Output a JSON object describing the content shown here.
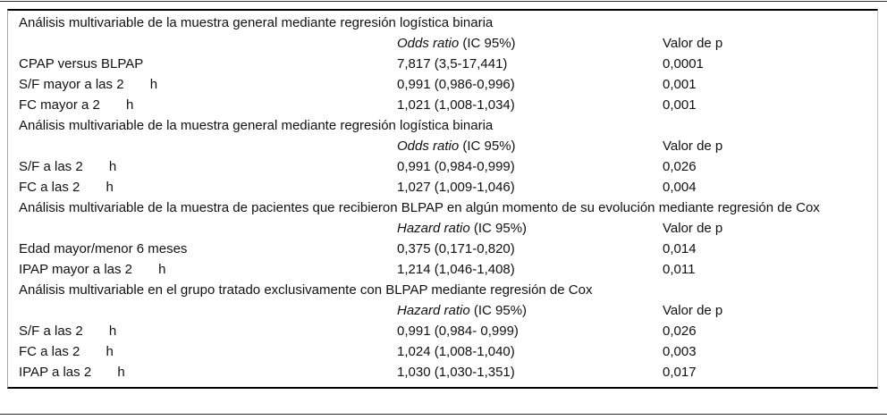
{
  "table": {
    "ci_suffix": " (IC 95%)",
    "p_header": "Valor de p",
    "text_color": "#111111",
    "rule_color": "#000000",
    "side_border_color": "#a6a6a6",
    "sections": [
      {
        "title": "Análisis multivariable de la muestra general mediante regresión logística binaria",
        "ratio_label": "Odds ratio",
        "rows": [
          {
            "label": "CPAP versus BLPAP",
            "value": "7,817 (3,5-17,441)",
            "p": "0,0001"
          },
          {
            "label": "S/F mayor a las 2       h",
            "value": "0,991 (0,986-0,996)",
            "p": "0,001"
          },
          {
            "label": "FC mayor a 2       h",
            "value": "1,021 (1,008-1,034)",
            "p": "0,001"
          }
        ]
      },
      {
        "title": "Análisis multivariable de la muestra general mediante regresión logística binaria",
        "ratio_label": "Odds ratio",
        "rows": [
          {
            "label": "S/F a las 2       h",
            "value": "0,991 (0,984-0,999)",
            "p": "0,026"
          },
          {
            "label": "FC a las 2       h",
            "value": "1,027 (1,009-1,046)",
            "p": "0,004"
          }
        ]
      },
      {
        "title": "Análisis multivariable de la muestra de pacientes que recibieron BLPAP en algún momento de su evolución mediante regresión de Cox",
        "ratio_label": "Hazard ratio",
        "rows": [
          {
            "label": "Edad mayor/menor 6 meses",
            "value": "0,375 (0,171-0,820)",
            "p": "0,014"
          },
          {
            "label": "IPAP mayor a las 2       h",
            "value": "1,214 (1,046-1,408)",
            "p": "0,011"
          }
        ]
      },
      {
        "title": "Análisis multivariable en el grupo tratado exclusivamente con BLPAP mediante regresión de Cox",
        "ratio_label": "Hazard ratio",
        "rows": [
          {
            "label": "S/F a las 2       h",
            "value": "0,991 (0,984- 0,999)",
            "p": "0,026"
          },
          {
            "label": "FC a las 2       h",
            "value": "1,024 (1,008-1,040)",
            "p": "0,003"
          },
          {
            "label": "IPAP a las 2       h",
            "value": "1,030 (1,030-1,351)",
            "p": "0,017"
          }
        ]
      }
    ]
  }
}
